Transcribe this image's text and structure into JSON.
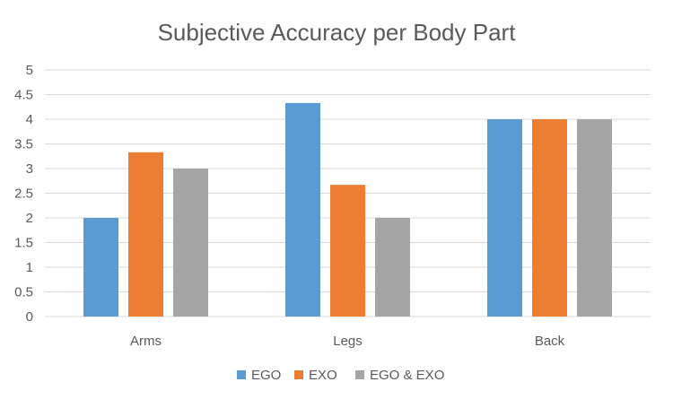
{
  "chart_data": {
    "type": "bar",
    "title": "Subjective Accuracy per Body Part",
    "categories": [
      "Arms",
      "Legs",
      "Back"
    ],
    "series": [
      {
        "name": "EGO",
        "color": "#5B9BD5",
        "values": [
          2.0,
          4.33,
          4.0
        ]
      },
      {
        "name": "EXO",
        "color": "#ED7D31",
        "values": [
          3.33,
          2.67,
          4.0
        ]
      },
      {
        "name": "EGO & EXO",
        "color": "#A5A5A5",
        "values": [
          3.0,
          2.0,
          4.0
        ]
      }
    ],
    "ylim": [
      0,
      5
    ],
    "yticks": [
      "0",
      "0.5",
      "1",
      "1.5",
      "2",
      "2.5",
      "3",
      "3.5",
      "4",
      "4.5",
      "5"
    ],
    "grid": true,
    "legend_position": "bottom"
  }
}
